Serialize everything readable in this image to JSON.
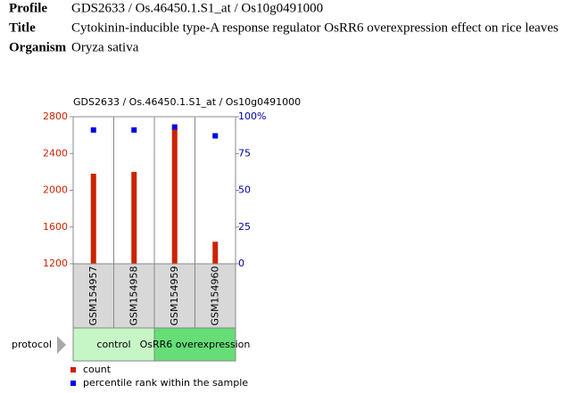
{
  "header": {
    "rows": [
      {
        "label": "Profile",
        "value": "GDS2633 / Os.46450.1.S1_at / Os10g0491000"
      },
      {
        "label": "Title",
        "value": "Cytokinin-inducible type-A response regulator OsRR6 overexpression effect on rice leaves"
      },
      {
        "label": "Organism",
        "value": "Oryza sativa"
      }
    ]
  },
  "chart_data": {
    "type": "bar",
    "title": "GDS2633 / Os.46450.1.S1_at / Os10g0491000",
    "categories": [
      "GSM154957",
      "GSM154958",
      "GSM154959",
      "GSM154960"
    ],
    "series": [
      {
        "name": "count",
        "color": "#cc2200",
        "values": [
          2180,
          2200,
          2680,
          1440
        ]
      },
      {
        "name": "percentile rank within the sample",
        "color": "#0000ee",
        "values": [
          91,
          91,
          93,
          87
        ],
        "axis": "y2"
      }
    ],
    "ylim": [
      1200,
      2800
    ],
    "yticks": [
      1200,
      1600,
      2000,
      2400,
      2800
    ],
    "y2lim": [
      0,
      100
    ],
    "y2ticks": [
      0,
      25,
      50,
      75,
      {
        "value": 100,
        "label": "100%"
      }
    ],
    "protocol": {
      "label": "protocol",
      "groups": [
        {
          "name": "control",
          "count": 2,
          "color": "#c6f5c6"
        },
        {
          "name": "OsRR6 overexpression",
          "count": 2,
          "color": "#66dd77"
        }
      ]
    }
  }
}
